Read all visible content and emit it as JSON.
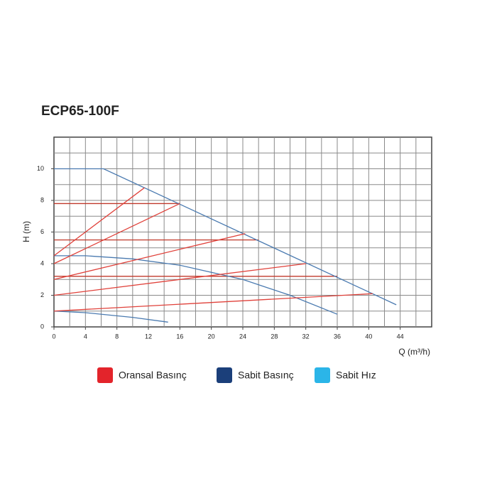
{
  "chart_data": {
    "type": "line",
    "title": "ECP65-100F",
    "ylabel": "H (m)",
    "xlabel": "Q (m³/h)",
    "xlim": [
      0,
      48
    ],
    "ylim": [
      0,
      12
    ],
    "xticks": [
      0,
      4,
      8,
      12,
      16,
      20,
      24,
      28,
      32,
      36,
      40,
      44
    ],
    "yticks": [
      0,
      2,
      4,
      6,
      8,
      10
    ],
    "xgrid": [
      2,
      4,
      6,
      8,
      10,
      12,
      14,
      16,
      18,
      20,
      22,
      24,
      26,
      28,
      30,
      32,
      34,
      36,
      38,
      40,
      42,
      44,
      46
    ],
    "ygrid": [
      1,
      2,
      3,
      4,
      5,
      6,
      7,
      8,
      9,
      10,
      11
    ],
    "series": [
      {
        "color": "#c0392b",
        "x": [
          0,
          16
        ],
        "values": [
          7.8,
          7.8
        ]
      },
      {
        "color": "#c0392b",
        "x": [
          0,
          26
        ],
        "values": [
          5.5,
          5.5
        ]
      },
      {
        "color": "#c0392b",
        "x": [
          0,
          36
        ],
        "values": [
          3.2,
          3.2
        ]
      },
      {
        "color": "#4a7ab0",
        "x": [
          0,
          6.3,
          43.5
        ],
        "values": [
          10,
          10,
          1.4
        ]
      },
      {
        "color": "#4a7ab0",
        "x": [
          0,
          4,
          10,
          16,
          24,
          30,
          36
        ],
        "values": [
          4.5,
          4.5,
          4.3,
          3.9,
          3,
          2,
          0.8
        ]
      },
      {
        "color": "#4a7ab0",
        "x": [
          0,
          4,
          10,
          14.5
        ],
        "values": [
          1,
          0.9,
          0.6,
          0.3
        ]
      },
      {
        "color": "#e0413a",
        "x": [
          0,
          11.5
        ],
        "values": [
          4.5,
          8.8
        ]
      },
      {
        "color": "#e0413a",
        "x": [
          0,
          16
        ],
        "values": [
          4,
          7.8
        ]
      },
      {
        "color": "#e0413a",
        "x": [
          0,
          24.3
        ],
        "values": [
          3,
          5.9
        ]
      },
      {
        "color": "#e0413a",
        "x": [
          0,
          32
        ],
        "values": [
          2,
          4
        ]
      },
      {
        "color": "#e0413a",
        "x": [
          0,
          40.5
        ],
        "values": [
          1,
          2.1
        ]
      }
    ],
    "legend": [
      {
        "name": "Oransal Basınç",
        "color": "#e3242b"
      },
      {
        "name": "Sabit Basınç",
        "color": "#1b3f7a"
      },
      {
        "name": "Sabit Hız",
        "color": "#2bb5e8"
      }
    ]
  }
}
